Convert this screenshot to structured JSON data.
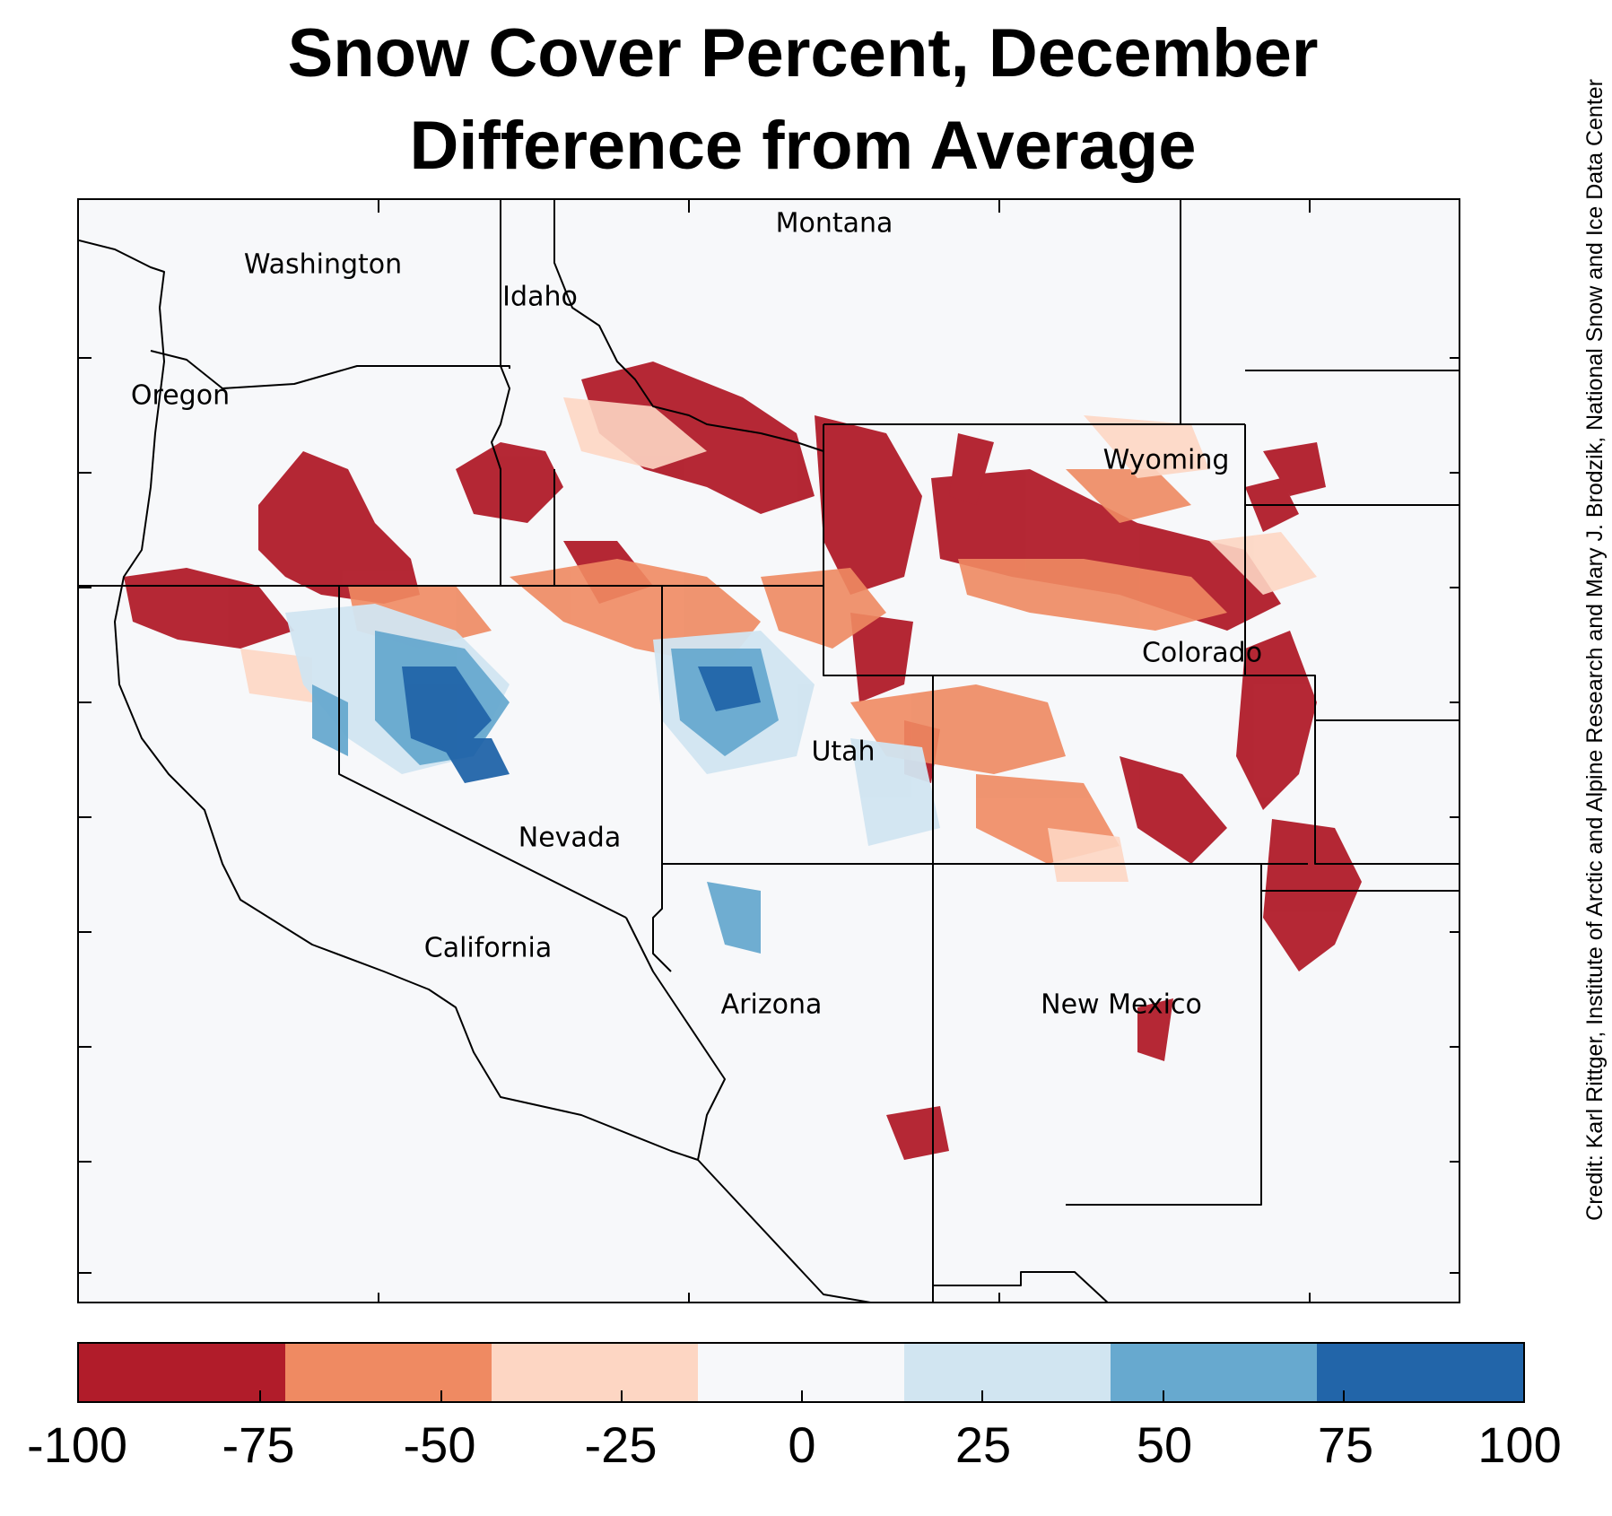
{
  "title": {
    "line1": "Snow Cover Percent, December",
    "line2": "Difference from Average"
  },
  "credit": "Credit: Karl Rittger, Institute of Arctic and Alpine Research and Mary J. Brodzik, National Snow and Ice Data Center",
  "states": [
    {
      "name": "Washington"
    },
    {
      "name": "Montana"
    },
    {
      "name": "Idaho"
    },
    {
      "name": "Oregon"
    },
    {
      "name": "Wyoming"
    },
    {
      "name": "Colorado"
    },
    {
      "name": "Utah"
    },
    {
      "name": "Nevada"
    },
    {
      "name": "California"
    },
    {
      "name": "Arizona"
    },
    {
      "name": "New Mexico"
    }
  ],
  "colorbar": {
    "range": [
      -100,
      100
    ],
    "tick_labels": [
      "-100",
      "-75",
      "-50",
      "-25",
      "0",
      "25",
      "50",
      "75",
      "100"
    ],
    "colors": [
      "#b11c2a",
      "#ef8a62",
      "#fdd6c3",
      "#f7f8fa",
      "#d1e5f1",
      "#67a9cf",
      "#2265a9"
    ]
  },
  "colors": {
    "strong_decrease": "#b11c2a",
    "moderate_decrease": "#ef8a62",
    "slight_decrease": "#fdd6c3",
    "no_change": "#f7f8fa",
    "slight_increase": "#d1e5f1",
    "moderate_increase": "#67a9cf",
    "strong_increase": "#2265a9"
  }
}
